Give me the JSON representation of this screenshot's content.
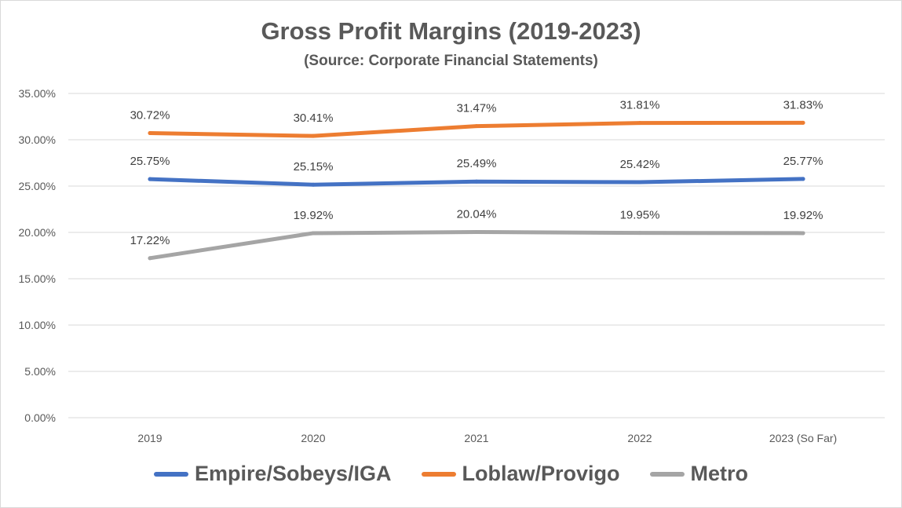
{
  "chart_data": {
    "type": "line",
    "title": "Gross Profit Margins (2019-2023)",
    "subtitle": "(Source: Corporate Financial Statements)",
    "categories": [
      "2019",
      "2020",
      "2021",
      "2022",
      "2023 (So Far)"
    ],
    "ylim": [
      0,
      35
    ],
    "yticks": [
      0,
      5,
      10,
      15,
      20,
      25,
      30,
      35
    ],
    "ytick_labels": [
      "0.00%",
      "5.00%",
      "10.00%",
      "15.00%",
      "20.00%",
      "25.00%",
      "30.00%",
      "35.00%"
    ],
    "grid": true,
    "legend_position": "bottom",
    "series": [
      {
        "name": "Empire/Sobeys/IGA",
        "color": "#4472c4",
        "values": [
          25.75,
          25.15,
          25.49,
          25.42,
          25.77
        ],
        "labels": [
          "25.75%",
          "25.15%",
          "25.49%",
          "25.42%",
          "25.77%"
        ]
      },
      {
        "name": "Loblaw/Provigo",
        "color": "#ed7d31",
        "values": [
          30.72,
          30.41,
          31.47,
          31.81,
          31.83
        ],
        "labels": [
          "30.72%",
          "30.41%",
          "31.47%",
          "31.81%",
          "31.83%"
        ]
      },
      {
        "name": "Metro",
        "color": "#a5a5a5",
        "values": [
          17.22,
          19.92,
          20.04,
          19.95,
          19.92
        ],
        "labels": [
          "17.22%",
          "19.92%",
          "20.04%",
          "19.95%",
          "19.92%"
        ]
      }
    ]
  }
}
